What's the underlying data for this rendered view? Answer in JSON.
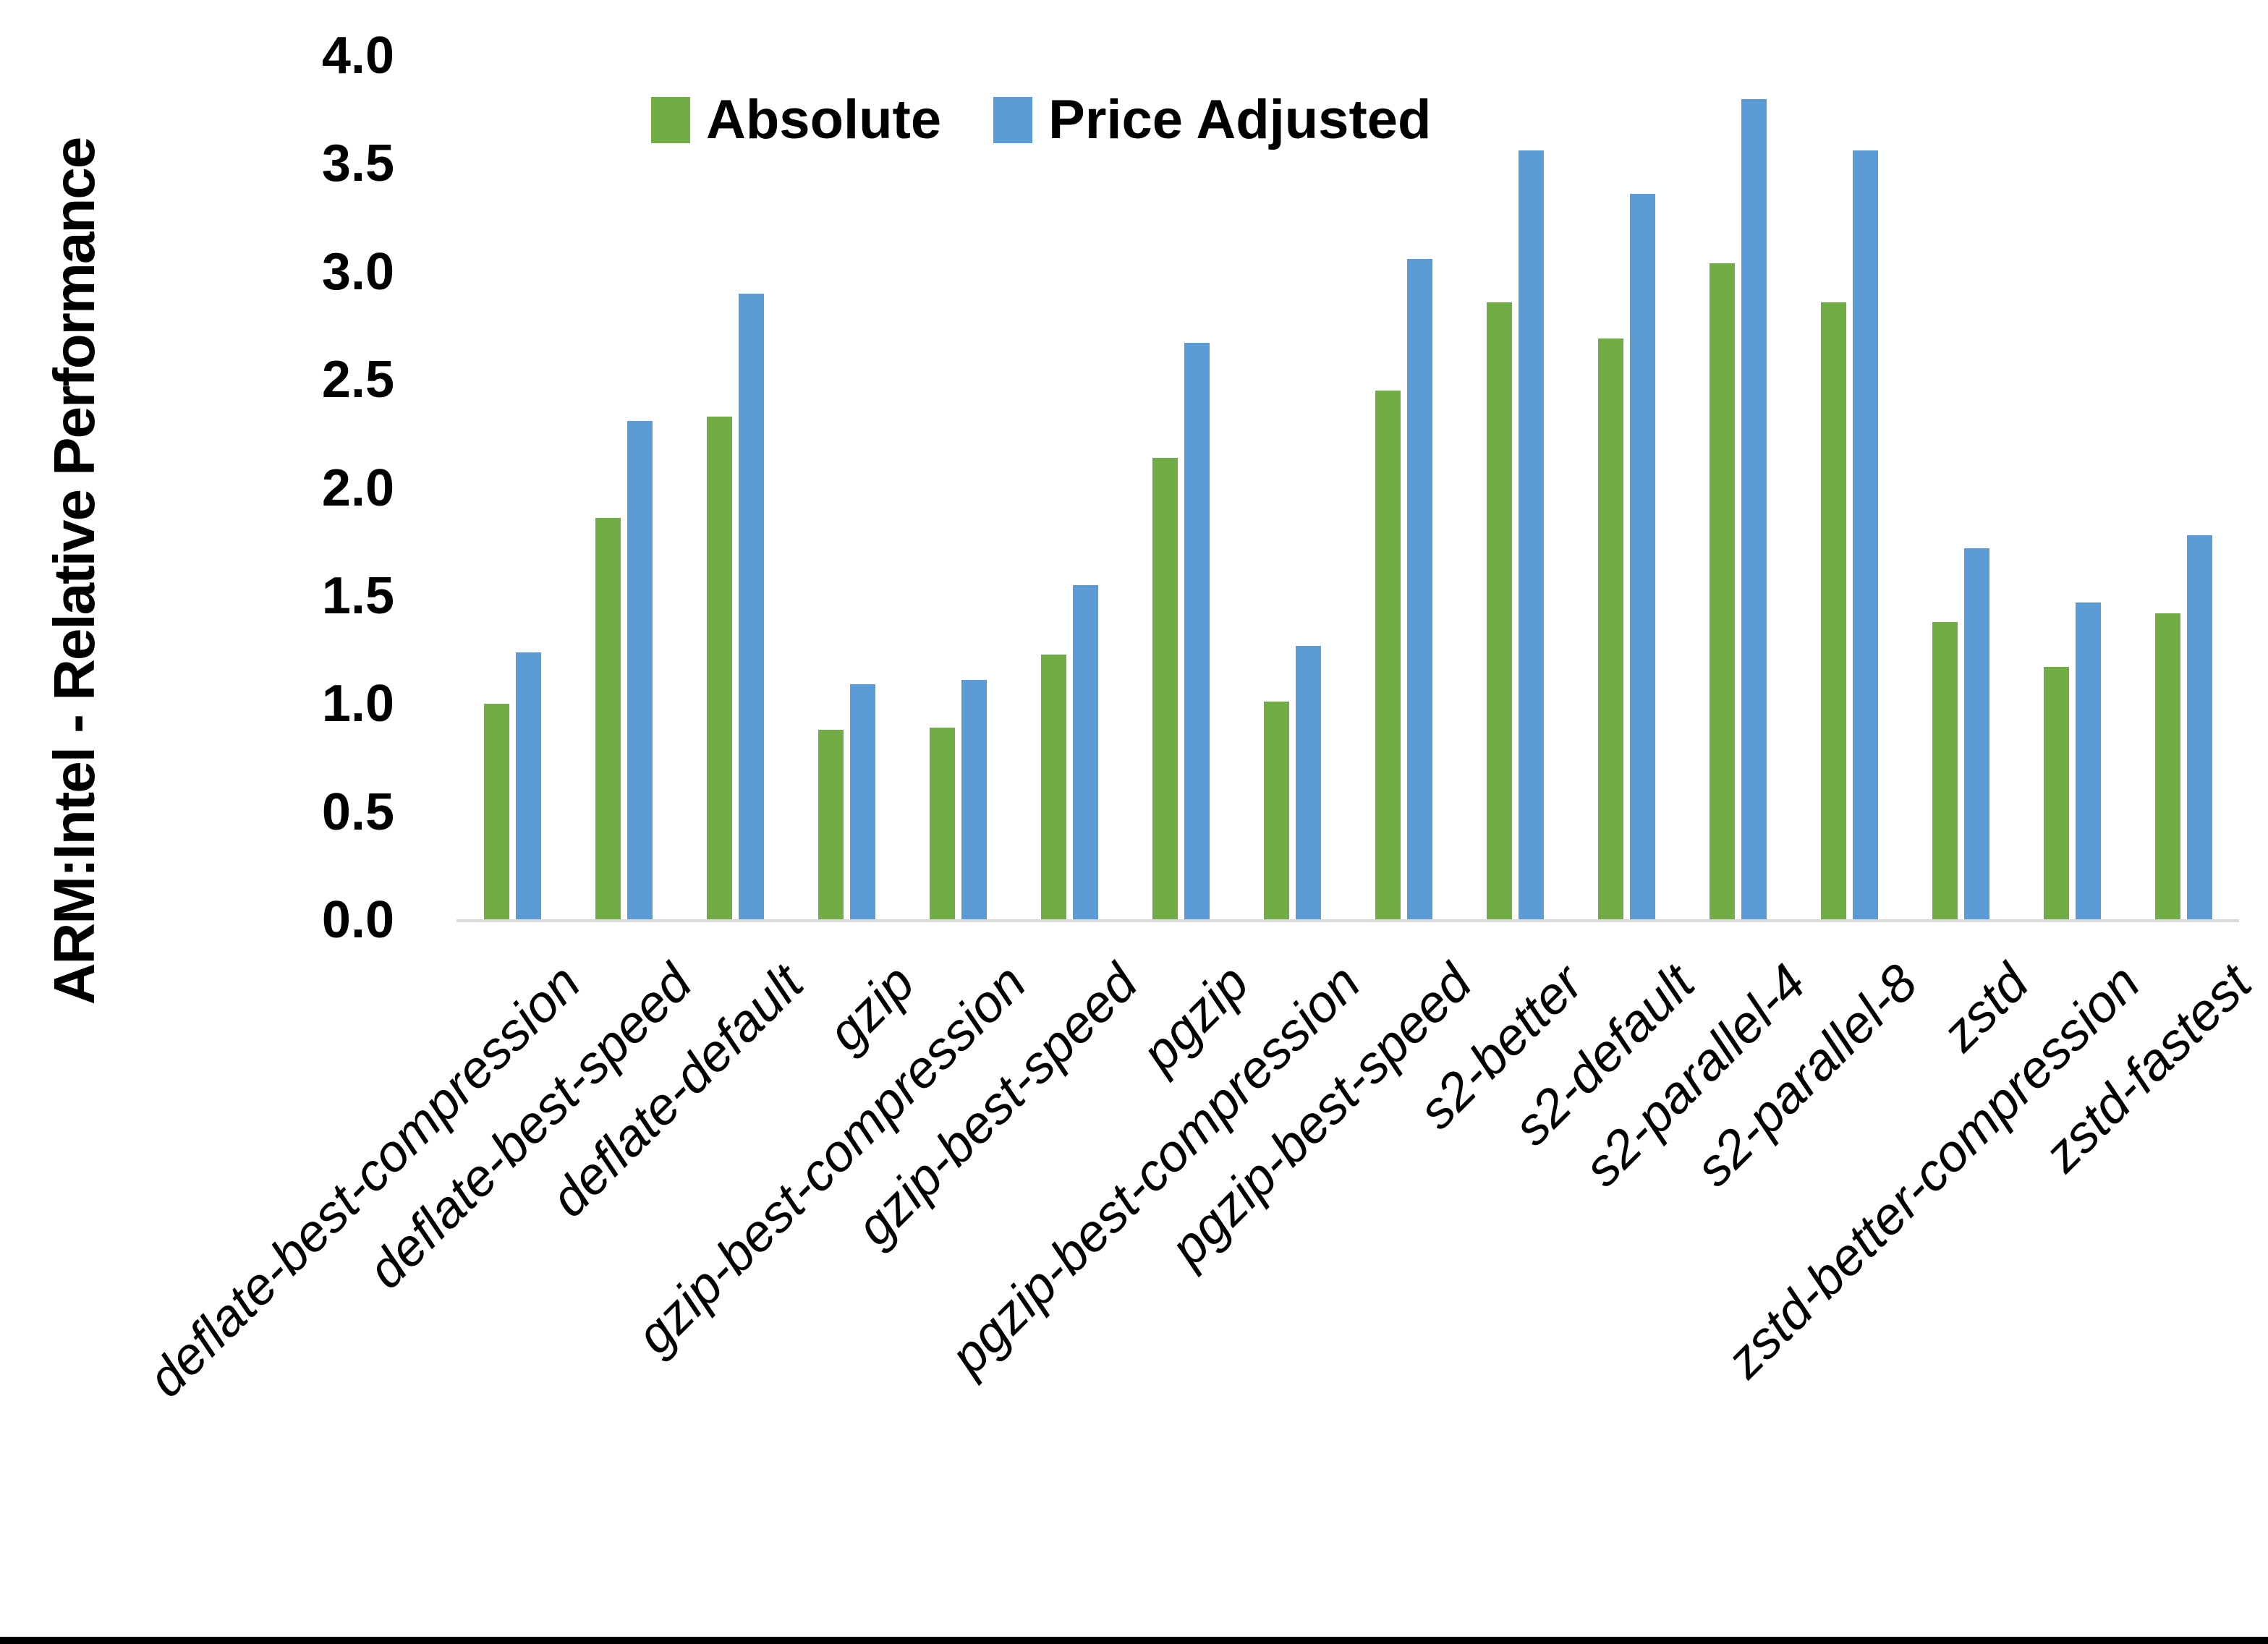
{
  "chart_data": {
    "type": "bar",
    "title": "",
    "xlabel": "",
    "ylabel": "ARM:Intel - Relative Performance",
    "ylim": [
      0.0,
      4.0
    ],
    "ytick_step": 0.5,
    "yticks": [
      "0.0",
      "0.5",
      "1.0",
      "1.5",
      "2.0",
      "2.5",
      "3.0",
      "3.5",
      "4.0"
    ],
    "grid": false,
    "legend_position": "top-center",
    "axis_line_color": "#d9d9d9",
    "categories": [
      "deflate-best-compression",
      "deflate-best-speed",
      "deflate-default",
      "gzip",
      "gzip-best-compression",
      "gzip-best-speed",
      "pgzip",
      "pgzip-best-compression",
      "pgzip-best-speed",
      "s2-better",
      "s2-default",
      "s2-parallel-4",
      "s2-parallel-8",
      "zstd",
      "zstd-better-compression",
      "zstd-fastest"
    ],
    "series": [
      {
        "name": "Absolute",
        "color": "#70AD47",
        "values": [
          1.0,
          1.86,
          2.33,
          0.88,
          0.89,
          1.23,
          2.14,
          1.01,
          2.45,
          2.86,
          2.69,
          3.04,
          2.86,
          1.38,
          1.17,
          1.42
        ]
      },
      {
        "name": "Price Adjusted",
        "color": "#5B9BD5",
        "values": [
          1.24,
          2.31,
          2.9,
          1.09,
          1.11,
          1.55,
          2.67,
          1.27,
          3.06,
          3.56,
          3.36,
          3.8,
          3.56,
          1.72,
          1.47,
          1.78
        ]
      }
    ]
  },
  "page": {
    "background_color": "#ffffff",
    "bottom_bar_color": "#000000"
  }
}
